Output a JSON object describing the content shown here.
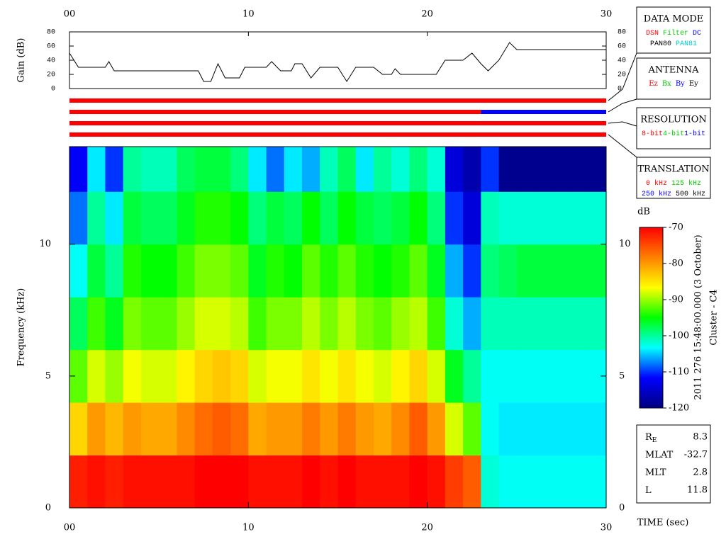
{
  "chart_data": [
    {
      "type": "line",
      "y_label": "Gain (dB)",
      "color": "#000000",
      "x": [
        0,
        0.5,
        1,
        2,
        2.2,
        2.5,
        7.2,
        7.5,
        7.9,
        8.3,
        8.7,
        9.5,
        9.8,
        11,
        11.3,
        11.8,
        12.4,
        12.6,
        13,
        13.5,
        14,
        15,
        15.5,
        16,
        17,
        17.5,
        18,
        18.2,
        18.5,
        20.5,
        21,
        22,
        22.5,
        23,
        23.4,
        24,
        24.6,
        25,
        30
      ],
      "values": [
        50,
        30,
        30,
        30,
        38,
        25,
        25,
        10,
        10,
        35,
        15,
        15,
        30,
        30,
        38,
        25,
        25,
        35,
        35,
        15,
        30,
        30,
        10,
        30,
        30,
        20,
        20,
        28,
        20,
        20,
        40,
        40,
        50,
        35,
        25,
        40,
        65,
        55,
        55
      ],
      "xlim": [
        0,
        30
      ],
      "xticks": [
        {
          "value": 0,
          "label": "00"
        },
        {
          "value": 10,
          "label": "10"
        },
        {
          "value": 20,
          "label": "20"
        },
        {
          "value": 30,
          "label": "30"
        }
      ],
      "ylim": [
        0,
        80
      ],
      "yticks": [
        0,
        20,
        40,
        60,
        80
      ]
    },
    {
      "type": "status",
      "xlim": [
        0,
        30
      ],
      "rows": [
        {
          "segments": [
            {
              "start": 0,
              "end": 30,
              "color": "#ff0000"
            }
          ]
        },
        {
          "segments": [
            {
              "start": 0,
              "end": 23,
              "color": "#ff0000"
            },
            {
              "start": 23,
              "end": 30,
              "color": "#0000ff"
            }
          ]
        },
        {
          "segments": [
            {
              "start": 0,
              "end": 30,
              "color": "#ff0000"
            }
          ]
        },
        {
          "segments": [
            {
              "start": 0,
              "end": 30,
              "color": "#ff0000"
            }
          ]
        }
      ]
    },
    {
      "type": "heatmap",
      "x_label": "TIME (sec)",
      "y_label": "Frequency (kHz)",
      "xbins": [
        0,
        1,
        2,
        3,
        4,
        5,
        6,
        7,
        8,
        9,
        10,
        11,
        12,
        13,
        14,
        15,
        16,
        17,
        18,
        19,
        20,
        21,
        22,
        23,
        24,
        25,
        26,
        27,
        28,
        29,
        30
      ],
      "ybins": [
        0,
        2,
        4,
        6,
        8,
        10,
        12,
        13.7
      ],
      "z": [
        [
          -72,
          -71,
          -72,
          -71,
          -71,
          -71,
          -71,
          -70,
          -70,
          -70,
          -71,
          -71,
          -71,
          -70,
          -71,
          -70,
          -71,
          -71,
          -71,
          -70,
          -71,
          -74,
          -76,
          -102,
          -103,
          -103,
          -103,
          -103,
          -103,
          -103
        ],
        [
          -84,
          -80,
          -82,
          -80,
          -81,
          -81,
          -79,
          -77,
          -76,
          -77,
          -81,
          -80,
          -80,
          -78,
          -80,
          -78,
          -80,
          -81,
          -79,
          -76,
          -80,
          -88,
          -92,
          -103,
          -104,
          -104,
          -104,
          -104,
          -104,
          -104
        ],
        [
          -92,
          -88,
          -90,
          -87,
          -88,
          -88,
          -86,
          -84,
          -83,
          -84,
          -88,
          -87,
          -87,
          -85,
          -87,
          -85,
          -87,
          -88,
          -86,
          -84,
          -88,
          -96,
          -100,
          -103,
          -103,
          -103,
          -103,
          -103,
          -103,
          -103
        ],
        [
          -98,
          -93,
          -96,
          -91,
          -92,
          -92,
          -90,
          -88,
          -88,
          -89,
          -93,
          -91,
          -91,
          -89,
          -91,
          -89,
          -91,
          -92,
          -90,
          -89,
          -93,
          -102,
          -106,
          -101,
          -101,
          -101,
          -101,
          -101,
          -101,
          -101
        ],
        [
          -103,
          -97,
          -100,
          -94,
          -95,
          -95,
          -93,
          -91,
          -91,
          -92,
          -96,
          -94,
          -95,
          -92,
          -94,
          -92,
          -94,
          -95,
          -94,
          -92,
          -96,
          -106,
          -110,
          -99,
          -98,
          -97,
          -97,
          -97,
          -97,
          -97
        ],
        [
          -108,
          -100,
          -104,
          -97,
          -98,
          -98,
          -96,
          -94,
          -94,
          -95,
          -99,
          -97,
          -98,
          -95,
          -98,
          -95,
          -97,
          -98,
          -97,
          -95,
          -99,
          -110,
          -114,
          -101,
          -102,
          -102,
          -102,
          -102,
          -102,
          -102
        ],
        [
          -112,
          -104,
          -110,
          -100,
          -101,
          -101,
          -98,
          -97,
          -97,
          -99,
          -104,
          -108,
          -104,
          -106,
          -101,
          -98,
          -104,
          -100,
          -102,
          -99,
          -102,
          -114,
          -117,
          -110,
          -119,
          -119,
          -119,
          -119,
          -119,
          -119
        ]
      ],
      "xlim": [
        0,
        30
      ],
      "xticks": [
        {
          "value": 0,
          "label": "00"
        },
        {
          "value": 10,
          "label": "10"
        },
        {
          "value": 20,
          "label": "20"
        },
        {
          "value": 30,
          "label": "30"
        }
      ],
      "ylim": [
        0,
        13.7
      ],
      "yticks": [
        0,
        5,
        10
      ],
      "colorbar": {
        "label": "dB",
        "lim": [
          -120,
          -70
        ],
        "ticks": [
          -70,
          -80,
          -90,
          -100,
          -110,
          -120
        ],
        "colors": [
          "#000080",
          "#0000ff",
          "#00ffff",
          "#00ff00",
          "#ffff00",
          "#ff8000",
          "#ff0000"
        ]
      }
    }
  ],
  "panels": [
    {
      "title": "DATA MODE",
      "lines": [
        [
          {
            "text": "DSN",
            "color": "#ff0000"
          },
          {
            "text": "Filter",
            "color": "#00cc00"
          },
          {
            "text": "DC",
            "color": "#0000ff"
          }
        ],
        [
          {
            "text": "PAN80",
            "color": "#000000"
          },
          {
            "text": "PAN81",
            "color": "#00cccc"
          }
        ]
      ]
    },
    {
      "title": "ANTENNA",
      "lines": [
        [
          {
            "text": "Ez",
            "color": "#ff0000"
          },
          {
            "text": "Bx",
            "color": "#00cc00"
          },
          {
            "text": "By",
            "color": "#0000ff"
          },
          {
            "text": "Ey",
            "color": "#000000"
          }
        ]
      ]
    },
    {
      "title": "RESOLUTION",
      "lines": [
        [
          {
            "text": "8-bit",
            "color": "#ff0000"
          },
          {
            "text": "4-bit",
            "color": "#00cc00"
          },
          {
            "text": "1-bit",
            "color": "#0000ff"
          }
        ]
      ]
    },
    {
      "title": "TRANSLATION",
      "lines": [
        [
          {
            "text": "0 kHz",
            "color": "#ff0000"
          },
          {
            "text": "125 kHz",
            "color": "#00cc00"
          }
        ],
        [
          {
            "text": "250 kHz",
            "color": "#0000ff"
          },
          {
            "text": "500 kHz",
            "color": "#000000"
          }
        ]
      ]
    }
  ],
  "timestamp": "2011 276 15:48:00.000 (3 October)",
  "spacecraft": "Cluster - C4",
  "info": [
    {
      "label": "R",
      "sub": "E",
      "value": 8.3
    },
    {
      "label": "MLAT",
      "value": -32.7
    },
    {
      "label": "MLT",
      "value": 2.8
    },
    {
      "label": "L",
      "value": 11.8
    }
  ]
}
